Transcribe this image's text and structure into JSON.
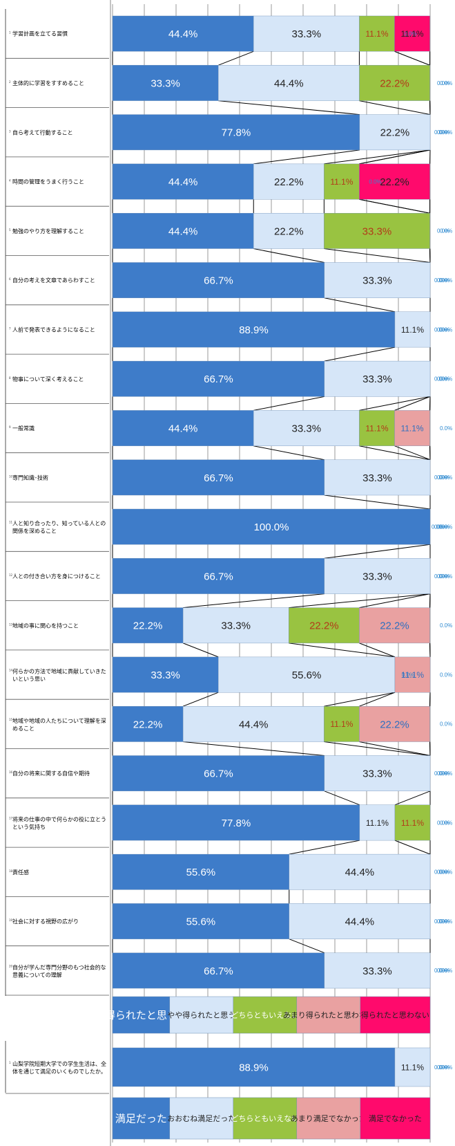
{
  "chart_data": [
    {
      "type": "bar",
      "stacked": "100%",
      "orientation": "horizontal",
      "categories": [
        "学習計画を立てる習慣",
        "主体的に学習をすすめること",
        "自ら考えて行動すること",
        "時間の管理をうまく行うこと",
        "勉強のやり方を理解すること",
        "自分の考えを文章であらわすこと",
        "人前で発表できるようになること",
        "物事について深く考えること",
        "一般常識",
        "専門知識･技術",
        "人と知り合ったり、知っている人との関係を深めること",
        "人との付き合い方を身につけること",
        "地域の事に関心を持つこと",
        "何らかの方法で地域に貢献していきたいという思い",
        "地域や地域の人たちについて理解を深めること",
        "自分の将来に関する自信や期待",
        "将来の仕事の中で何らかの役に立とうという気持ち",
        "責任感",
        "社会に対する視野の広がり",
        "自分が学んだ専門分野のもつ社会的な意義についての理解"
      ],
      "series": [
        {
          "name": "得られたと思う",
          "values": [
            44.4,
            33.3,
            77.8,
            44.4,
            44.4,
            66.7,
            88.9,
            66.7,
            44.4,
            66.7,
            100.0,
            66.7,
            22.2,
            33.3,
            22.2,
            66.7,
            77.8,
            55.6,
            55.6,
            66.7
          ]
        },
        {
          "name": "やや得られたと思う",
          "values": [
            33.3,
            44.4,
            22.2,
            22.2,
            22.2,
            33.3,
            11.1,
            33.3,
            33.3,
            33.3,
            0.0,
            33.3,
            33.3,
            55.6,
            44.4,
            33.3,
            11.1,
            44.4,
            44.4,
            33.3
          ]
        },
        {
          "name": "どちらともいえない",
          "values": [
            11.1,
            22.2,
            0.0,
            11.1,
            33.3,
            0.0,
            0.0,
            0.0,
            11.1,
            0.0,
            0.0,
            0.0,
            22.2,
            0.0,
            11.1,
            0.0,
            11.1,
            0.0,
            0.0,
            0.0
          ]
        },
        {
          "name": "あまり得られたと思わない",
          "values": [
            0.0,
            0.0,
            0.0,
            0.0,
            0.0,
            0.0,
            0.0,
            0.0,
            11.1,
            0.0,
            0.0,
            0.0,
            22.2,
            11.1,
            22.2,
            0.0,
            0.0,
            0.0,
            0.0,
            0.0
          ]
        },
        {
          "name": "得られたと思わない",
          "values": [
            11.1,
            0.0,
            0.0,
            22.2,
            0.0,
            0.0,
            0.0,
            0.0,
            0.0,
            0.0,
            0.0,
            0.0,
            0.0,
            0.0,
            0.0,
            0.0,
            0.0,
            0.0,
            0.0,
            0.0
          ]
        }
      ],
      "xlim": [
        0,
        100
      ],
      "grid": true,
      "legend": "bottom"
    },
    {
      "type": "bar",
      "stacked": "100%",
      "orientation": "horizontal",
      "categories": [
        "山梨学院短期大学での学生生活は、全体を通じて満足のいくものでしたか。"
      ],
      "series": [
        {
          "name": "満足だった",
          "values": [
            88.9
          ]
        },
        {
          "name": "おおむね満足だった",
          "values": [
            11.1
          ]
        },
        {
          "name": "どちらともいえない",
          "values": [
            0.0
          ]
        },
        {
          "name": "あまり満足でなかった",
          "values": [
            0.0
          ]
        },
        {
          "name": "満足でなかった",
          "values": [
            0.0
          ]
        }
      ],
      "xlim": [
        0,
        100
      ],
      "grid": true,
      "legend": "bottom"
    }
  ],
  "colors": {
    "series": [
      "#3e7cc9",
      "#d6e6f8",
      "#99c341",
      "#e9a1a1",
      "#ff0a6c"
    ],
    "label_text": [
      "#ffffff",
      "#222222",
      "#b23a19",
      "#2f6fbf",
      "#222222"
    ],
    "zero_label": "#2f8ad0",
    "grid": "#7f7f7f"
  }
}
